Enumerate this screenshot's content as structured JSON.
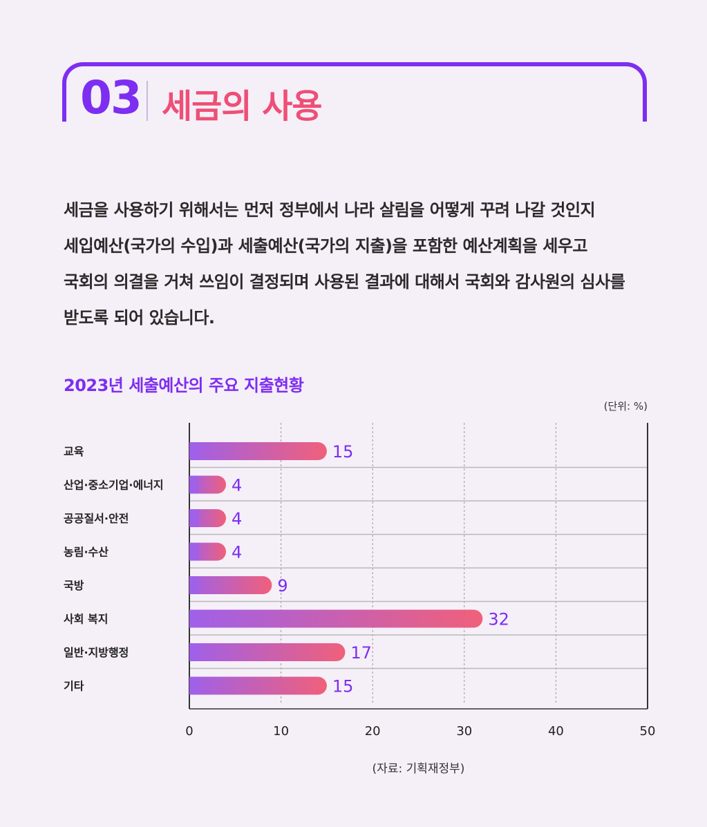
{
  "section": {
    "number": "03",
    "title": "세금의 사용"
  },
  "intro_lines": [
    "세금을 사용하기 위해서는 먼저 정부에서 나라 살림을 어떻게 꾸려 나갈 것인지",
    "세입예산(국가의 수입)과 세출예산(국가의  지출)을 포함한 예산계획을 세우고",
    "국회의 의결을 거쳐 쓰임이 결정되며 사용된 결과에 대해서 국회와 감사원의 심사를",
    "받도록 되어 있습니다."
  ],
  "colors": {
    "accent": "#7d2ef0",
    "title_pink": "#ee4f76",
    "bar_start": "#a060e8",
    "bar_end": "#f0607a"
  },
  "chart_data": {
    "type": "bar",
    "orientation": "horizontal",
    "title": "2023년 세출예산의 주요 지출현황",
    "unit": "(단위: %)",
    "categories": [
      "교육",
      "산업·중소기업·에너지",
      "공공질서·안전",
      "농림·수산",
      "국방",
      "사회 복지",
      "일반·지방행정",
      "기타"
    ],
    "values": [
      15,
      4,
      4,
      4,
      9,
      32,
      17,
      15
    ],
    "xlim": [
      0,
      50
    ],
    "xticks": [
      0,
      10,
      20,
      30,
      40,
      50
    ],
    "grid": true,
    "source": "(자료: 기획재정부)"
  }
}
